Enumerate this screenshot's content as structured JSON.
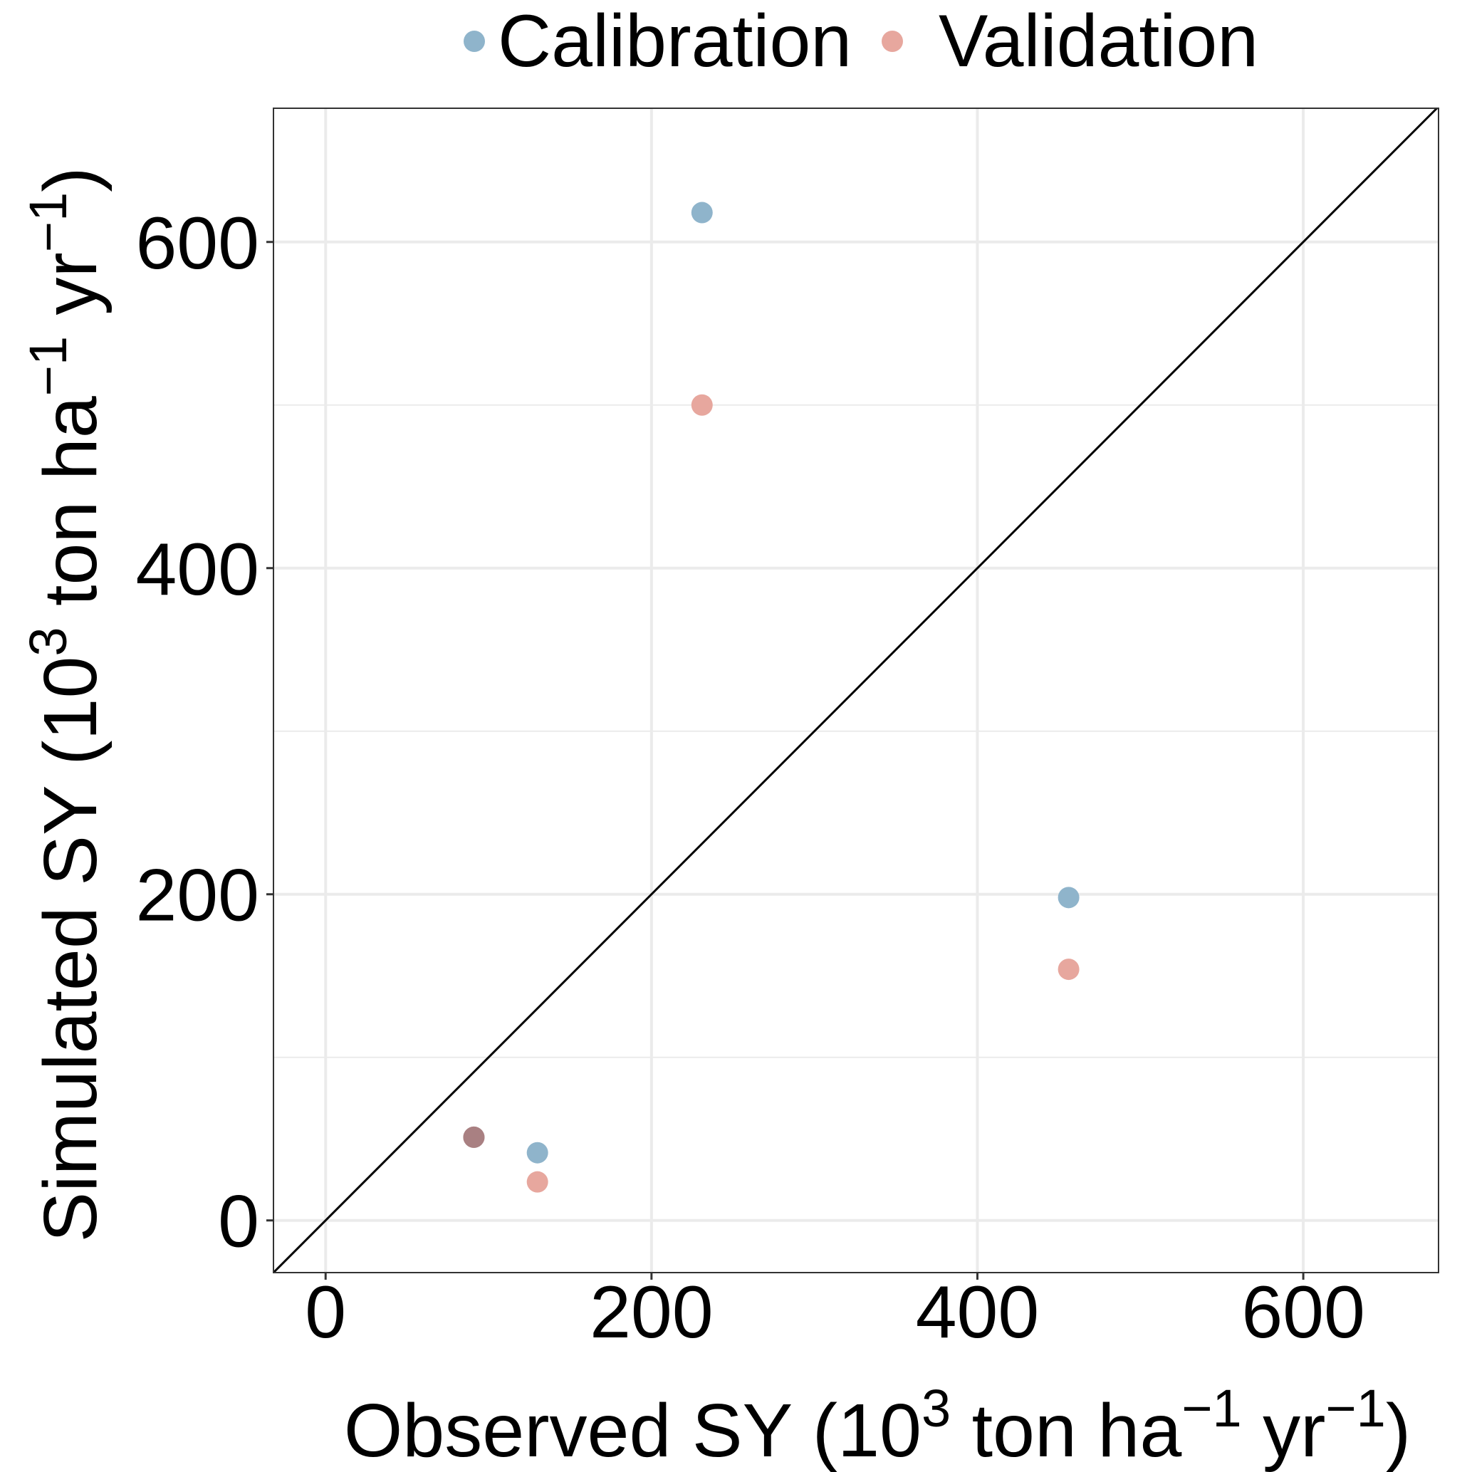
{
  "chart_data": {
    "type": "scatter",
    "title": "",
    "xlabel": {
      "main": "Observed SY (10",
      "sup1": "3",
      "mid1": " ton ha",
      "sup2": "−1",
      "mid2": " yr",
      "sup3": "−1",
      "end": ")"
    },
    "ylabel": {
      "main": "Simulated SY (10",
      "sup1": "3",
      "mid1": " ton ha",
      "sup2": "−1",
      "mid2": " yr",
      "sup3": "−1",
      "end": ")"
    },
    "xlim": [
      -32,
      683
    ],
    "ylim": [
      -32,
      682
    ],
    "xticks": [
      0,
      200,
      400,
      600
    ],
    "yticks": [
      0,
      200,
      400,
      600
    ],
    "xtick_labels": [
      "0",
      "200",
      "400",
      "600"
    ],
    "ytick_labels": [
      "0",
      "200",
      "400",
      "600"
    ],
    "minor_grid_y": [
      100,
      300,
      500
    ],
    "minor_grid_x": [],
    "grid": true,
    "reference_line": {
      "type": "1:1",
      "slope": 1,
      "intercept": 0,
      "color": "#000000"
    },
    "legend": {
      "position": "top",
      "entries": [
        {
          "name": "Calibration",
          "color": "#8FB4CB"
        },
        {
          "name": "Validation",
          "color": "#E7A79E"
        }
      ]
    },
    "series": [
      {
        "name": "Calibration",
        "color": "#8FB4CB",
        "points": [
          {
            "x": 231,
            "y": 618
          },
          {
            "x": 456,
            "y": 198
          },
          {
            "x": 91,
            "y": 51
          },
          {
            "x": 130,
            "y": 41.5
          }
        ]
      },
      {
        "name": "Validation",
        "color": "#E7A79E",
        "points": [
          {
            "x": 231,
            "y": 500
          },
          {
            "x": 456,
            "y": 154
          },
          {
            "x": 91,
            "y": 51
          },
          {
            "x": 130,
            "y": 23.6
          }
        ]
      }
    ]
  }
}
